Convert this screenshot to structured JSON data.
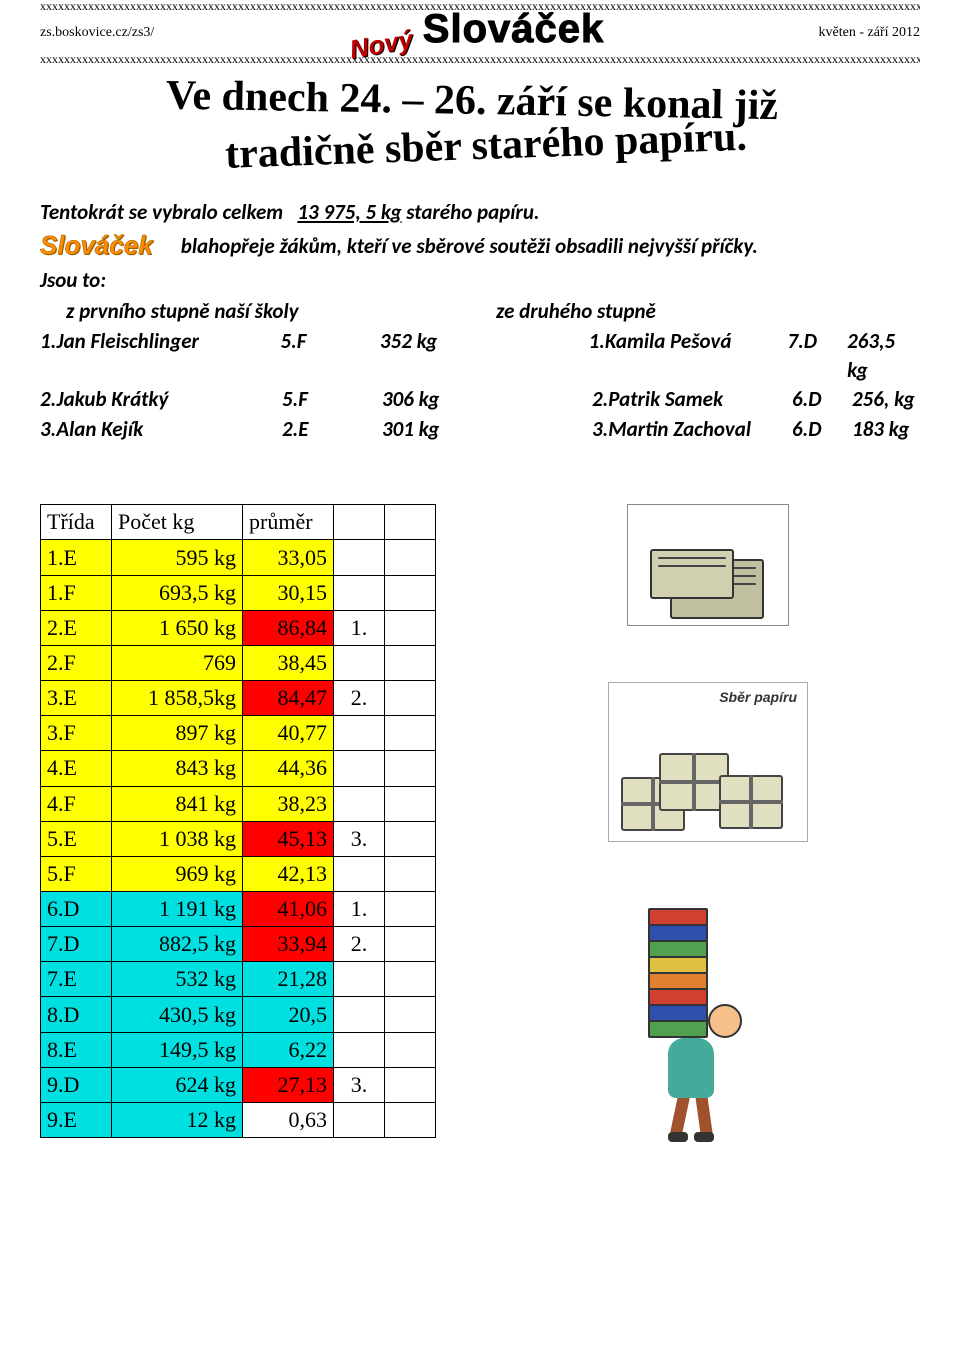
{
  "header": {
    "border_x": "xxxxxxxxxxxxxxxxxxxxxxxxxxxxxxxxxxxxxxxxxxxxxxxxxxxxxxxxxxxxxxxxxxxxxxxxxxxxxxxxxxxxxxxxxxxxxxxxxxxxxxxxxxxxxxxxxxxxxxxxxxxxxxxxxxxxxxxxxxxxxxxxxxxxxxxxxxxxxxxxxxxx",
    "site": "zs.boskovice.cz/zs3/",
    "issue": "květen - září 2012",
    "mast_prefix": "Nový",
    "mast_name": "Slováček"
  },
  "headline": {
    "line1": "Ve dnech 24. – 26. září se konal již",
    "line2": "tradičně sběr starého papíru."
  },
  "intro": {
    "line1_a": "Tentokrát se vybralo celkem",
    "line1_b": "13 975, 5  kg",
    "line1_c": "starého papíru.",
    "small_logo": "Slováček",
    "line2": "blahopřeje žákům, kteří ve sběrové soutěži obsadili nejvyšší příčky.",
    "line3": "Jsou to:",
    "head_left": "z prvního stupně naší školy",
    "head_right": "ze druhého stupně"
  },
  "winners": {
    "left": [
      {
        "name": "1.Jan Fleischlinger",
        "class": "5.F",
        "kg": "352 kg"
      },
      {
        "name": "2.Jakub Krátký",
        "class": "5.F",
        "kg": "306 kg"
      },
      {
        "name": "3.Alan Kejík",
        "class": "2.E",
        "kg": "301 kg"
      }
    ],
    "right": [
      {
        "name": "1.Kamila Pešová",
        "class": "7.D",
        "kg": "263,5 kg"
      },
      {
        "name": "2.Patrik Samek",
        "class": "6.D",
        "kg": "256, kg"
      },
      {
        "name": "3.Martin Zachoval",
        "class": "6.D",
        "kg": "183 kg"
      }
    ]
  },
  "table": {
    "headers": {
      "trida": "Třída",
      "pocet": "Počet kg",
      "prumer": "průměr"
    },
    "rows": [
      {
        "trida": "1.E",
        "pocet": "595 kg",
        "prumer": "33,05",
        "rank": "",
        "hl_trida": "yellow",
        "hl_pocet": "yellow",
        "hl_prumer": "yellow",
        "hl_rank": ""
      },
      {
        "trida": "1.F",
        "pocet": "693,5 kg",
        "prumer": "30,15",
        "rank": "",
        "hl_trida": "yellow",
        "hl_pocet": "yellow",
        "hl_prumer": "yellow",
        "hl_rank": ""
      },
      {
        "trida": "2.E",
        "pocet": "1 650 kg",
        "prumer": "86,84",
        "rank": "1.",
        "hl_trida": "yellow",
        "hl_pocet": "yellow",
        "hl_prumer": "red",
        "hl_rank": ""
      },
      {
        "trida": "2.F",
        "pocet": "769",
        "prumer": "38,45",
        "rank": "",
        "hl_trida": "yellow",
        "hl_pocet": "yellow",
        "hl_prumer": "yellow",
        "hl_rank": ""
      },
      {
        "trida": "3.E",
        "pocet": "1 858,5kg",
        "prumer": "84,47",
        "rank": "2.",
        "hl_trida": "yellow",
        "hl_pocet": "yellow",
        "hl_prumer": "red",
        "hl_rank": ""
      },
      {
        "trida": "3.F",
        "pocet": "897 kg",
        "prumer": "40,77",
        "rank": "",
        "hl_trida": "yellow",
        "hl_pocet": "yellow",
        "hl_prumer": "yellow",
        "hl_rank": ""
      },
      {
        "trida": "4.E",
        "pocet": "843 kg",
        "prumer": "44,36",
        "rank": "",
        "hl_trida": "yellow",
        "hl_pocet": "yellow",
        "hl_prumer": "yellow",
        "hl_rank": ""
      },
      {
        "trida": "4.F",
        "pocet": "841 kg",
        "prumer": "38,23",
        "rank": "",
        "hl_trida": "yellow",
        "hl_pocet": "yellow",
        "hl_prumer": "yellow",
        "hl_rank": ""
      },
      {
        "trida": "5.E",
        "pocet": "1 038 kg",
        "prumer": "45,13",
        "rank": "3.",
        "hl_trida": "yellow",
        "hl_pocet": "yellow",
        "hl_prumer": "red",
        "hl_rank": ""
      },
      {
        "trida": "5.F",
        "pocet": "969 kg",
        "prumer": "42,13",
        "rank": "",
        "hl_trida": "yellow",
        "hl_pocet": "yellow",
        "hl_prumer": "yellow",
        "hl_rank": ""
      },
      {
        "trida": "6.D",
        "pocet": "1 191 kg",
        "prumer": "41,06",
        "rank": "1.",
        "hl_trida": "cyan",
        "hl_pocet": "cyan",
        "hl_prumer": "red",
        "hl_rank": ""
      },
      {
        "trida": "7.D",
        "pocet": "882,5 kg",
        "prumer": "33,94",
        "rank": "2.",
        "hl_trida": "cyan",
        "hl_pocet": "cyan",
        "hl_prumer": "red",
        "hl_rank": ""
      },
      {
        "trida": "7.E",
        "pocet": "532 kg",
        "prumer": "21,28",
        "rank": "",
        "hl_trida": "cyan",
        "hl_pocet": "cyan",
        "hl_prumer": "cyan",
        "hl_rank": ""
      },
      {
        "trida": "8.D",
        "pocet": "430,5 kg",
        "prumer": "20,5",
        "rank": "",
        "hl_trida": "cyan",
        "hl_pocet": "cyan",
        "hl_prumer": "cyan",
        "hl_rank": ""
      },
      {
        "trida": "8.E",
        "pocet": "149,5 kg",
        "prumer": "6,22",
        "rank": "",
        "hl_trida": "cyan",
        "hl_pocet": "cyan",
        "hl_prumer": "cyan",
        "hl_rank": ""
      },
      {
        "trida": "9.D",
        "pocet": "624 kg",
        "prumer": "27,13",
        "rank": "3.",
        "hl_trida": "cyan",
        "hl_pocet": "cyan",
        "hl_prumer": "red",
        "hl_rank": ""
      },
      {
        "trida": "9.E",
        "pocet": "12 kg",
        "prumer": "0,63",
        "rank": "",
        "hl_trida": "cyan",
        "hl_pocet": "cyan",
        "hl_prumer": "",
        "hl_rank": ""
      }
    ]
  },
  "images": {
    "sber_label": "Sběr papíru"
  },
  "colors": {
    "yellow": "#ffff00",
    "red": "#ff0000",
    "cyan": "#00e0e0"
  }
}
